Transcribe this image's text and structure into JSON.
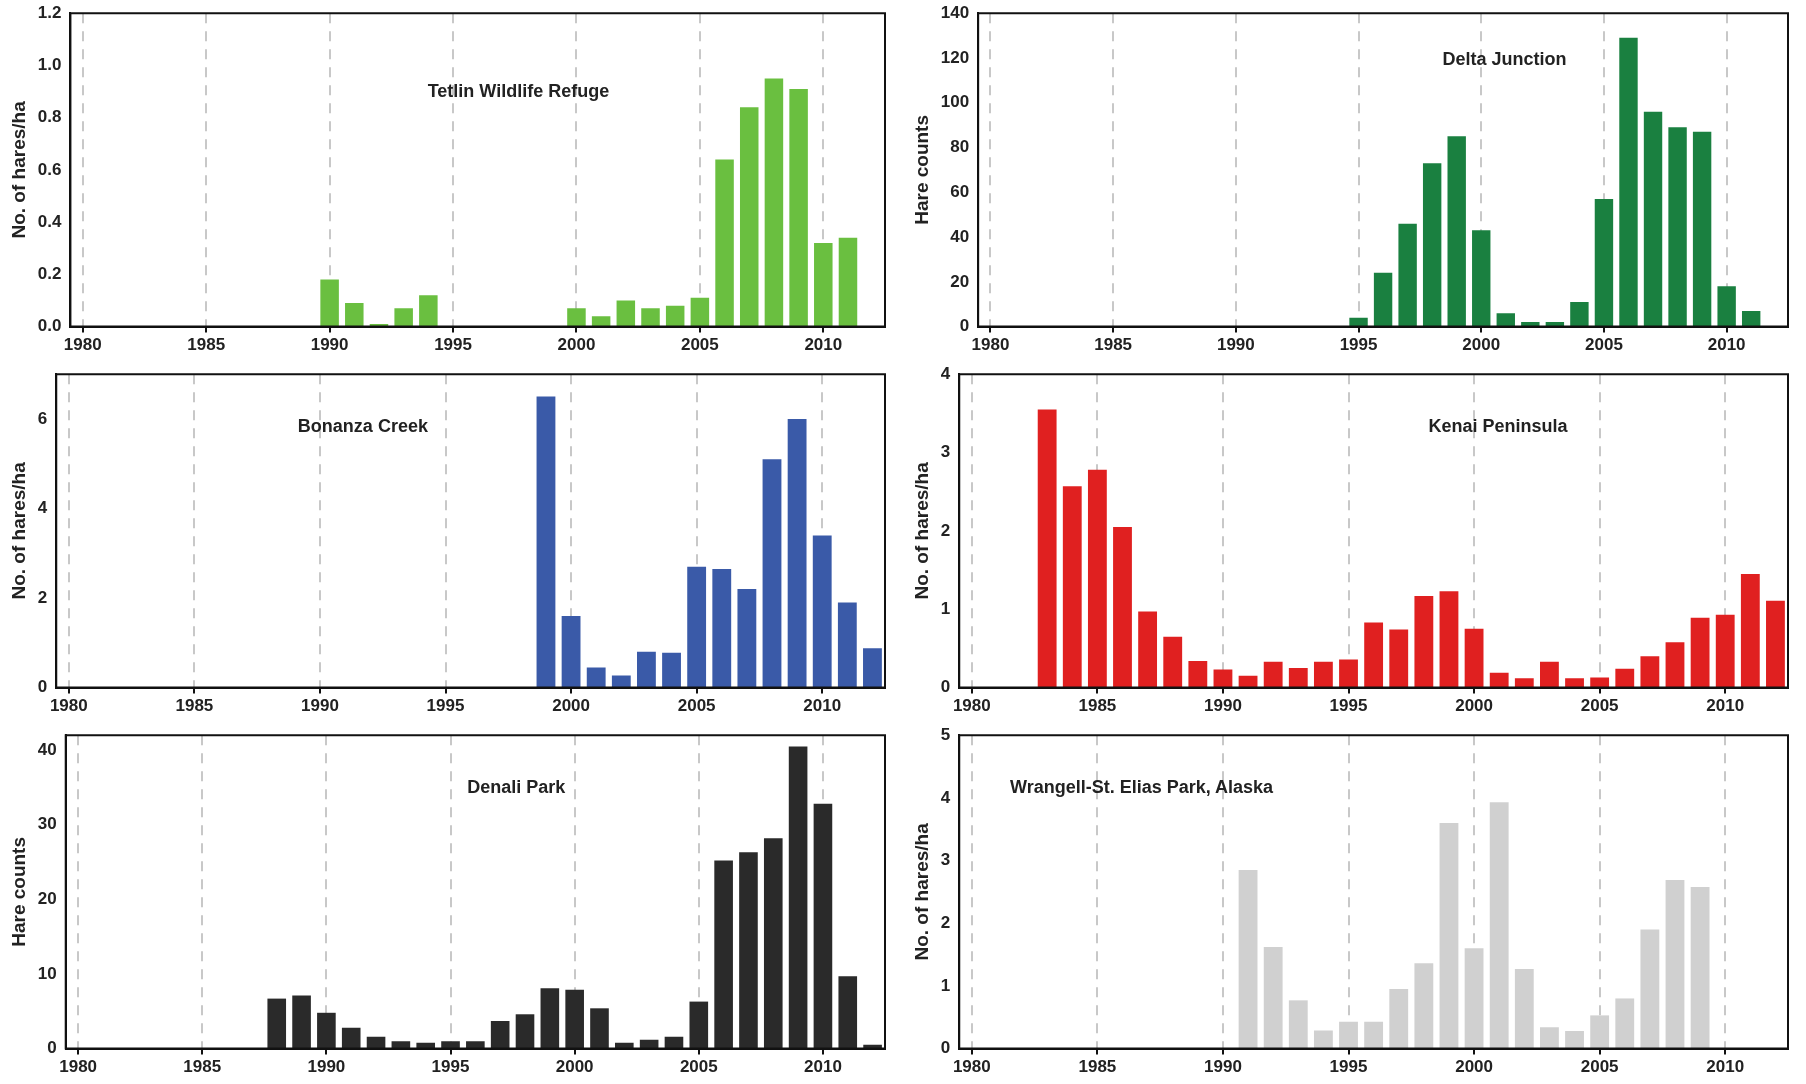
{
  "chart_data": [
    {
      "type": "bar",
      "title": "Tetlin Wildlife Refuge",
      "ylabel": "No. of hares/ha",
      "xlim": [
        1979.5,
        2012.5
      ],
      "xticks": [
        1980,
        1985,
        1990,
        1995,
        2000,
        2005,
        2010
      ],
      "ylim": [
        0,
        1.2
      ],
      "yticks": [
        {
          "value": 0,
          "label": "0.0"
        },
        {
          "value": 0.2,
          "label": "0.2"
        },
        {
          "value": 0.4,
          "label": "0.4"
        },
        {
          "value": 0.6,
          "label": "0.6"
        },
        {
          "value": 0.8,
          "label": "0.8"
        },
        {
          "value": 1,
          "label": "1.0"
        },
        {
          "value": 1.2,
          "label": "1.2"
        }
      ],
      "grid": "x",
      "line_style": "dashed",
      "legend": false,
      "series": [
        {
          "color": "#6abf40",
          "x": [
            1990,
            1991,
            1992,
            1993,
            1994,
            2000,
            2001,
            2002,
            2003,
            2004,
            2005,
            2006,
            2007,
            2008,
            2009,
            2010,
            2011
          ],
          "values": [
            0.18,
            0.09,
            0.01,
            0.07,
            0.12,
            0.07,
            0.04,
            0.1,
            0.07,
            0.08,
            0.11,
            0.64,
            0.84,
            0.95,
            0.91,
            0.32,
            0.34
          ]
        }
      ]
    },
    {
      "type": "bar",
      "title": "Delta Junction",
      "ylabel": "Hare counts",
      "xlim": [
        1979.5,
        2012.5
      ],
      "xticks": [
        1980,
        1985,
        1990,
        1995,
        2000,
        2005,
        2010
      ],
      "ylim": [
        0,
        140
      ],
      "yticks": [
        0,
        20,
        40,
        60,
        80,
        100,
        120,
        140
      ],
      "grid": "x",
      "line_style": "dashed",
      "legend": false,
      "series": [
        {
          "color": "#1a8040",
          "x": [
            1995,
            1996,
            1997,
            1998,
            1999,
            2000,
            2001,
            2002,
            2003,
            2004,
            2005,
            2006,
            2007,
            2008,
            2009,
            2010,
            2011
          ],
          "values": [
            4,
            24,
            46,
            73,
            85,
            43,
            6,
            2,
            2,
            11,
            57,
            129,
            96,
            89,
            87,
            18,
            7
          ]
        }
      ]
    },
    {
      "type": "bar",
      "title": "Bonanza Creek",
      "ylabel": "No. of hares/ha",
      "xlim": [
        1979.5,
        2012.5
      ],
      "xticks": [
        1980,
        1985,
        1990,
        1995,
        2000,
        2005,
        2010
      ],
      "ylim": [
        0,
        7
      ],
      "yticks": [
        0,
        2,
        4,
        6
      ],
      "grid": "x",
      "line_style": "dashed",
      "legend": false,
      "series": [
        {
          "color": "#3a5aa8",
          "x": [
            1999,
            2000,
            2001,
            2002,
            2003,
            2004,
            2005,
            2006,
            2007,
            2008,
            2009,
            2010,
            2011,
            2012
          ],
          "values": [
            6.5,
            1.6,
            0.45,
            0.27,
            0.8,
            0.78,
            2.7,
            2.65,
            2.2,
            5.1,
            6.0,
            3.4,
            1.9,
            0.88
          ]
        }
      ]
    },
    {
      "type": "bar",
      "title": "Kenai Peninsula",
      "ylabel": "No. of hares/ha",
      "xlim": [
        1979.5,
        2012.5
      ],
      "xticks": [
        1980,
        1985,
        1990,
        1995,
        2000,
        2005,
        2010
      ],
      "ylim": [
        0,
        4
      ],
      "yticks": [
        0,
        1,
        2,
        3,
        4
      ],
      "grid": "x",
      "line_style": "dashed",
      "legend": false,
      "series": [
        {
          "color": "#e02020",
          "x": [
            1983,
            1984,
            1985,
            1986,
            1987,
            1988,
            1989,
            1990,
            1991,
            1992,
            1993,
            1994,
            1995,
            1996,
            1997,
            1998,
            1999,
            2000,
            2001,
            2002,
            2003,
            2004,
            2005,
            2006,
            2007,
            2008,
            2009,
            2010,
            2011,
            2012
          ],
          "values": [
            3.55,
            2.57,
            2.78,
            2.05,
            0.97,
            0.65,
            0.34,
            0.23,
            0.15,
            0.33,
            0.25,
            0.33,
            0.36,
            0.83,
            0.74,
            1.17,
            1.23,
            0.75,
            0.19,
            0.12,
            0.33,
            0.12,
            0.13,
            0.24,
            0.4,
            0.58,
            0.89,
            0.93,
            1.45,
            1.11
          ]
        }
      ]
    },
    {
      "type": "bar",
      "title": "Denali Park",
      "ylabel": "Hare counts",
      "xlim": [
        1979.5,
        2012.5
      ],
      "xticks": [
        1980,
        1985,
        1990,
        1995,
        2000,
        2005,
        2010
      ],
      "ylim": [
        0,
        42
      ],
      "yticks": [
        0,
        10,
        20,
        30,
        40
      ],
      "grid": "x",
      "line_style": "dashed",
      "legend": false,
      "series": [
        {
          "color": "#2a2a2a",
          "x": [
            1988,
            1989,
            1990,
            1991,
            1992,
            1993,
            1994,
            1995,
            1996,
            1997,
            1998,
            1999,
            2000,
            2001,
            2002,
            2003,
            2004,
            2005,
            2006,
            2007,
            2008,
            2009,
            2010,
            2011,
            2012
          ],
          "values": [
            6.7,
            7.1,
            4.8,
            2.8,
            1.6,
            1.0,
            0.8,
            1.0,
            1.0,
            3.7,
            4.6,
            8.1,
            7.9,
            5.4,
            0.8,
            1.2,
            1.6,
            6.3,
            25.2,
            26.3,
            28.2,
            40.5,
            32.8,
            9.7,
            0.5
          ]
        }
      ]
    },
    {
      "type": "bar",
      "title": "Wrangell-St. Elias Park, Alaska",
      "ylabel": "No. of hares/ha",
      "xlim": [
        1979.5,
        2012.5
      ],
      "xticks": [
        1980,
        1985,
        1990,
        1995,
        2000,
        2005,
        2010
      ],
      "ylim": [
        0,
        5
      ],
      "yticks": [
        0,
        1,
        2,
        3,
        4,
        5
      ],
      "grid": "x",
      "line_style": "dashed",
      "legend": false,
      "series": [
        {
          "color": "#d0d0d0",
          "x": [
            1991,
            1992,
            1993,
            1994,
            1995,
            1996,
            1997,
            1998,
            1999,
            2000,
            2001,
            2002,
            2003,
            2004,
            2005,
            2006,
            2007,
            2008,
            2009
          ],
          "values": [
            2.85,
            1.62,
            0.77,
            0.29,
            0.43,
            0.43,
            0.95,
            1.36,
            3.6,
            1.6,
            3.93,
            1.27,
            0.34,
            0.28,
            0.53,
            0.8,
            1.9,
            2.69,
            2.58
          ]
        }
      ]
    }
  ]
}
